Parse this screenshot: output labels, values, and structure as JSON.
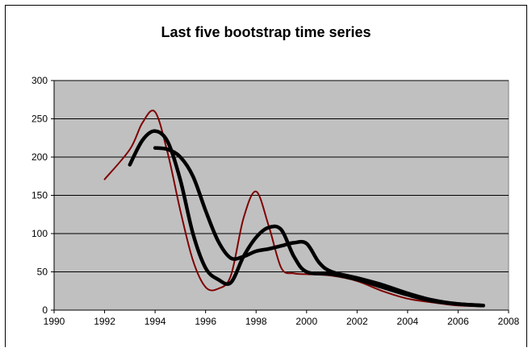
{
  "chart_data": {
    "type": "line",
    "title": "Last five bootstrap time series",
    "xlabel": "",
    "ylabel": "",
    "xlim": [
      1990,
      2008
    ],
    "ylim": [
      0,
      300
    ],
    "x_ticks": [
      1990,
      1992,
      1994,
      1996,
      1998,
      2000,
      2002,
      2004,
      2006,
      2008
    ],
    "y_ticks": [
      0,
      50,
      100,
      150,
      200,
      250,
      300
    ],
    "grid": "horizontal major gridlines",
    "legend": "none",
    "plot_background": "#c0c0c0",
    "series": [
      {
        "color": "#7f0000",
        "line": "thin",
        "x": [
          1992,
          1993,
          1993.5,
          1994,
          1994.5,
          1995,
          1995.5,
          1996,
          1996.5,
          1997,
          1997.5,
          1998,
          1998.5,
          1999,
          1999.5,
          2000,
          2001,
          2002,
          2003,
          2004,
          2005,
          2006,
          2007
        ],
        "y": [
          171,
          210,
          245,
          259,
          205,
          130,
          65,
          30,
          28,
          45,
          120,
          155,
          110,
          55,
          48,
          47,
          45,
          38,
          25,
          15,
          10,
          6,
          5
        ]
      },
      {
        "color": "#000000",
        "line": "thick",
        "x": [
          1993,
          1993.5,
          1994,
          1994.5,
          1995,
          1995.5,
          1996,
          1996.5,
          1997,
          1997.5,
          1998,
          1998.5,
          1999,
          1999.5,
          2000,
          2001,
          2002,
          2003,
          2004,
          2005,
          2006,
          2007
        ],
        "y": [
          190,
          222,
          234,
          220,
          170,
          100,
          55,
          40,
          36,
          70,
          95,
          108,
          105,
          70,
          50,
          47,
          40,
          30,
          20,
          12,
          8,
          6
        ]
      },
      {
        "color": "#000000",
        "line": "thick",
        "x": [
          1994,
          1994.5,
          1995,
          1995.5,
          1996,
          1996.5,
          1997,
          1997.5,
          1998,
          1998.5,
          1999,
          1999.5,
          2000,
          2000.5,
          2001,
          2002,
          2003,
          2004,
          2005,
          2006,
          2007
        ],
        "y": [
          212,
          210,
          200,
          175,
          130,
          90,
          68,
          70,
          77,
          80,
          84,
          88,
          87,
          62,
          50,
          42,
          33,
          22,
          13,
          8,
          6
        ]
      }
    ]
  }
}
